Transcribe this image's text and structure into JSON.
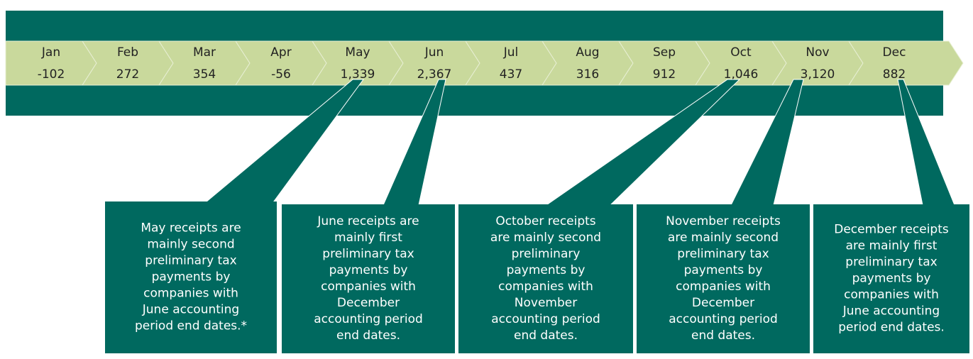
{
  "months": [
    {
      "label": "Jan",
      "value": "-102"
    },
    {
      "label": "Feb",
      "value": "272"
    },
    {
      "label": "Mar",
      "value": "354"
    },
    {
      "label": "Apr",
      "value": "-56"
    },
    {
      "label": "May",
      "value": "1,339"
    },
    {
      "label": "Jun",
      "value": "2,367"
    },
    {
      "label": "Jul",
      "value": "437"
    },
    {
      "label": "Aug",
      "value": "316"
    },
    {
      "label": "Sep",
      "value": "912"
    },
    {
      "label": "Oct",
      "value": "1,046"
    },
    {
      "label": "Nov",
      "value": "3,120"
    },
    {
      "label": "Dec",
      "value": "882"
    }
  ],
  "callouts": [
    {
      "lines": [
        "May receipts are",
        "mainly second",
        "preliminary tax",
        "payments by",
        "companies with",
        "June accounting",
        "period end dates.*"
      ]
    },
    {
      "lines": [
        "June receipts are",
        "mainly first",
        "preliminary tax",
        "payments by",
        "companies with",
        "December",
        "accounting period",
        "end dates."
      ]
    },
    {
      "lines": [
        "October receipts",
        "are mainly second",
        "preliminary",
        "payments by",
        "companies with",
        "November",
        "accounting period",
        "end dates."
      ]
    },
    {
      "lines": [
        "November receipts",
        "are mainly second",
        "preliminary tax",
        "payments by",
        "companies with",
        "December",
        "accounting period",
        "end dates."
      ]
    },
    {
      "lines": [
        "December receipts",
        "are mainly first",
        "preliminary tax",
        "payments by",
        "companies with",
        "June accounting",
        "period end dates."
      ]
    }
  ]
}
